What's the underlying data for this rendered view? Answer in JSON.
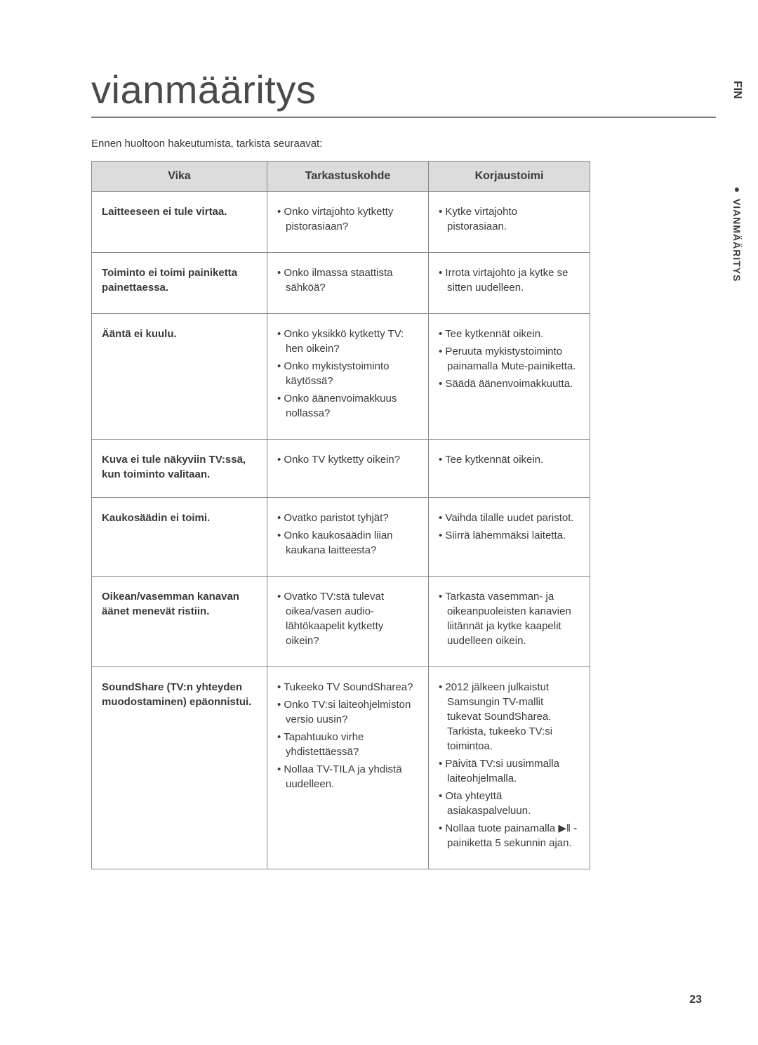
{
  "page": {
    "title": "vianmääritys",
    "intro": "Ennen huoltoon hakeutumista, tarkista seuraavat:",
    "page_number": "23"
  },
  "side": {
    "lang": "FIN",
    "section": "VIANMÄÄRITYS"
  },
  "table": {
    "headers": {
      "vika": "Vika",
      "tarkastus": "Tarkastuskohde",
      "korjaus": "Korjaustoimi"
    },
    "rows": [
      {
        "vika": "Laitteeseen ei tule virtaa.",
        "tarkastus": [
          "Onko virtajohto kytketty pistorasiaan?"
        ],
        "korjaus": [
          "Kytke virtajohto pistorasiaan."
        ]
      },
      {
        "vika": "Toiminto ei toimi painiketta painettaessa.",
        "tarkastus": [
          "Onko ilmassa staattista sähköä?"
        ],
        "korjaus": [
          "Irrota virtajohto ja kytke se sitten uudelleen."
        ]
      },
      {
        "vika": "Ääntä ei kuulu.",
        "tarkastus": [
          "Onko yksikkö kytketty TV: hen oikein?",
          "Onko mykistystoiminto käytössä?",
          "Onko äänenvoimakkuus nollassa?"
        ],
        "korjaus": [
          "Tee kytkennät oikein.",
          "Peruuta mykistystoiminto painamalla Mute-painiketta.",
          "Säädä äänenvoimakkuutta."
        ]
      },
      {
        "vika": "Kuva ei tule näkyviin TV:ssä, kun toiminto valitaan.",
        "tarkastus": [
          "Onko TV kytketty oikein?"
        ],
        "korjaus": [
          "Tee kytkennät oikein."
        ]
      },
      {
        "vika": "Kaukosäädin ei toimi.",
        "tarkastus": [
          "Ovatko paristot tyhjät?",
          "Onko kaukosäädin liian kaukana laitteesta?"
        ],
        "korjaus": [
          "Vaihda tilalle uudet paristot.",
          "Siirrä lähemmäksi laitetta."
        ]
      },
      {
        "vika": "Oikean/vasemman kanavan äänet menevät ristiin.",
        "tarkastus": [
          "Ovatko TV:stä tulevat oikea/vasen audio-lähtökaapelit kytketty oikein?"
        ],
        "korjaus": [
          "Tarkasta vasemman- ja oikeanpuoleisten kanavien liitännät ja kytke kaapelit uudelleen oikein."
        ]
      },
      {
        "vika": "SoundShare (TV:n yhteyden muodostaminen) epäonnistui.",
        "tarkastus": [
          "Tukeeko TV SoundSharea?",
          "Onko TV:si laiteohjelmiston versio uusin?",
          "Tapahtuuko virhe yhdistettäessä?",
          "Nollaa TV-TILA ja yhdistä uudelleen."
        ],
        "korjaus": [
          "2012 jälkeen julkaistut Samsungin TV-mallit tukevat SoundSharea. Tarkista, tukeeko TV:si toimintoa.",
          "Päivitä TV:si uusimmalla laiteohjelmalla.",
          "Ota yhteyttä asiakaspalveluun.",
          "Nollaa tuote painamalla ▶ǁ -painiketta 5 sekunnin ajan."
        ]
      }
    ]
  }
}
